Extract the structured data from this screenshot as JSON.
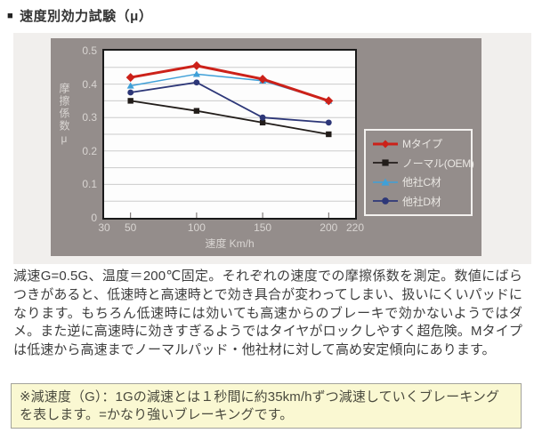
{
  "header": {
    "bullet": "■",
    "title": "速度別効力試験（μ）"
  },
  "chart_data": {
    "type": "line",
    "x": [
      50,
      100,
      150,
      200
    ],
    "series": [
      {
        "name": "Mタイプ",
        "values": [
          0.42,
          0.455,
          0.415,
          0.35
        ],
        "color": "#cc2119",
        "marker": "diamond",
        "line_width": 3
      },
      {
        "name": "ノーマル(OEM)",
        "values": [
          0.35,
          0.32,
          0.285,
          0.25
        ],
        "color": "#221d1a",
        "marker": "square",
        "line_width": 1.8
      },
      {
        "name": "他社C材",
        "values": [
          0.395,
          0.43,
          0.41,
          0.35
        ],
        "color": "#3fa0d8",
        "marker": "triangle",
        "line_width": 1.5
      },
      {
        "name": "他社D材",
        "values": [
          0.375,
          0.405,
          0.3,
          0.285
        ],
        "color": "#2d3778",
        "marker": "circle",
        "line_width": 1.8
      }
    ],
    "title": "速度別効力試験（μ）",
    "xlabel": "速度 Km/h",
    "ylabel": "摩擦係数μ",
    "xlim": [
      30,
      220
    ],
    "ylim": [
      0,
      0.5
    ],
    "x_ticks": [
      30,
      50,
      100,
      150,
      200,
      220
    ],
    "y_ticks": [
      0,
      0.1,
      0.2,
      0.3,
      0.4,
      0.5
    ],
    "grid_step": 0.05,
    "grid": "on",
    "legend_position": "inside-right-bottom",
    "style": {
      "chart_bg": "#948d8b",
      "plot_bg": "#fdfdfd",
      "panel_bg": "#f1efed",
      "grid_color": "#cbcbcb",
      "plot_border": "#1a1a1a",
      "axis_text": "#d9d5d2",
      "tick_mark": "#6b6563",
      "legend_border": "#f3f1ef",
      "legend_text": "#eae7e3"
    }
  },
  "description": "減速G=0.5G、温度＝200℃固定。それぞれの速度での摩擦係数を測定。数値にばらつきがあると、低速時と高速時とで効き具合が変わってしまい、扱いにくいパッドになります。もちろん低速時には効いても高速からのブレーキで効かないようではダメ。また逆に高速時に効きすぎるようではタイヤがロックしやすく超危険。Mタイプは低速から高速までノーマルパッド・他社材に対して高め安定傾向にあります。",
  "note": {
    "text": "※減速度（G）：1Gの減速とは１秒間に約35km/hずつ減速していくブレーキングを表します。=かなり強いブレーキングです。",
    "bg": "#faf8d2",
    "border": "#a3a39b"
  }
}
